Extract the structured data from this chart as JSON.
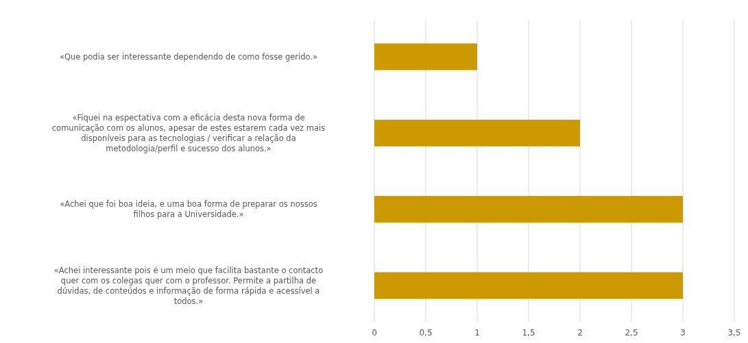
{
  "chart_data": {
    "type": "bar",
    "orientation": "horizontal",
    "categories": [
      "«Que podia ser interessante dependendo de como fosse gerido.»",
      "«Fiquei na espectativa com a eficácia desta nova forma de comunicação com os alunos, apesar de estes estarem cada vez mais disponíveis para as tecnologias / verificar a relação da metodologia/perfil e sucesso dos alunos.»",
      "«Achei que foi boa ideia, e uma boa forma de preparar os nossos filhos para a Universidade.»",
      "«Achei interessante pois é um meio que facilita bastante o contacto quer com os colegas quer com o professor. Permite a partilha de dúvidas, de conteúdos e informação de forma rápida e acessível a todos.»"
    ],
    "values": [
      1,
      2,
      3,
      3
    ],
    "color": "#cc9900",
    "xlim": [
      0,
      3.5
    ],
    "xticks": [
      0,
      {
        "value": 0.5,
        "label": "0,5"
      },
      1,
      {
        "value": 1.5,
        "label": "1,5"
      },
      2,
      {
        "value": 2.5,
        "label": "2,5"
      },
      3,
      {
        "value": 3.5,
        "label": "3,5"
      }
    ],
    "grid": "x"
  }
}
